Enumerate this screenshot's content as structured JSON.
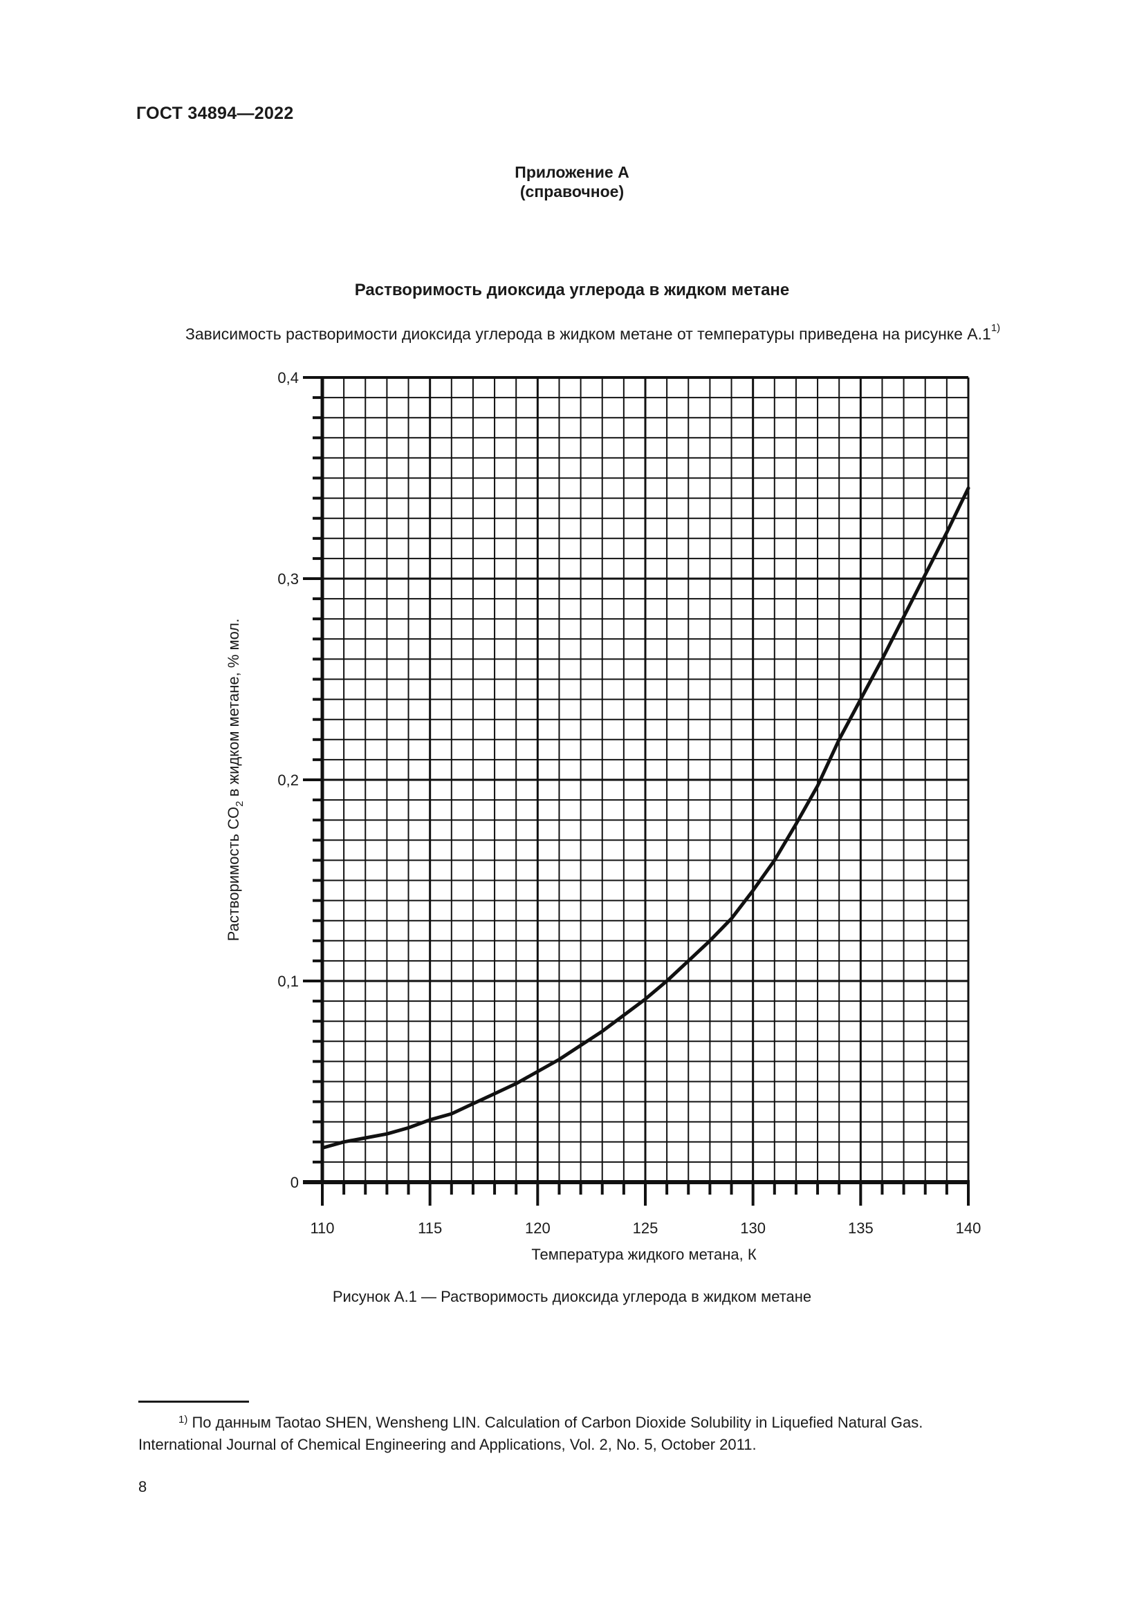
{
  "header": {
    "doc_id": "ГОСТ 34894—2022"
  },
  "annex": {
    "title": "Приложение А",
    "status": "(справочное)"
  },
  "section": {
    "title": "Растворимость диоксида углерода в жидком метане",
    "intro": "Зависимость растворимости диоксида углерода в жидком метане от температуры приведена на рисунке А.1",
    "intro_footnote_ref": "1)"
  },
  "chart_data": {
    "type": "line",
    "title": "",
    "xlabel": "Температура жидкого метана, К",
    "ylabel": "Растворимость CO2 в жидком метане, % мол.",
    "ylabel_parts": {
      "before_sub": "Растворимость CO",
      "sub": "2",
      "after_sub": " в жидком метане, % мол."
    },
    "xlim": [
      110,
      140
    ],
    "ylim": [
      0,
      0.4
    ],
    "x_ticks": [
      110,
      115,
      120,
      125,
      130,
      135,
      140
    ],
    "x_tick_labels": [
      "110",
      "115",
      "120",
      "125",
      "130",
      "135",
      "140"
    ],
    "y_ticks": [
      0,
      0.1,
      0.2,
      0.3,
      0.4
    ],
    "y_tick_labels": [
      "0",
      "0,1",
      "0,2",
      "0,3",
      "0,4"
    ],
    "x_minor_step": 1,
    "y_minor_step": 0.01,
    "grid": true,
    "legend": null,
    "series": [
      {
        "name": "Растворимость CO2",
        "color": "#111111",
        "x": [
          110,
          111,
          112,
          113,
          114,
          115,
          116,
          117,
          118,
          119,
          120,
          121,
          122,
          123,
          124,
          125,
          126,
          127,
          128,
          129,
          130,
          131,
          132,
          133,
          134,
          135,
          136,
          137,
          138,
          139,
          140
        ],
        "y": [
          0.017,
          0.02,
          0.022,
          0.024,
          0.027,
          0.031,
          0.034,
          0.039,
          0.044,
          0.049,
          0.055,
          0.061,
          0.068,
          0.075,
          0.083,
          0.091,
          0.1,
          0.11,
          0.12,
          0.131,
          0.145,
          0.16,
          0.178,
          0.197,
          0.22,
          0.24,
          0.26,
          0.281,
          0.302,
          0.323,
          0.345
        ]
      }
    ]
  },
  "figure": {
    "caption": "Рисунок А.1 — Растворимость диоксида углерода в жидком метане"
  },
  "footnote": {
    "marker": "1)",
    "line1": " По данным Taotao SHEN, Wensheng LIN. Calculation of Carbon Dioxide Solubility in Liquefied Natural Gas.",
    "line2": "International Journal of Chemical Engineering and Applications, Vol. 2, No. 5, October 2011."
  },
  "page": {
    "number": "8"
  }
}
